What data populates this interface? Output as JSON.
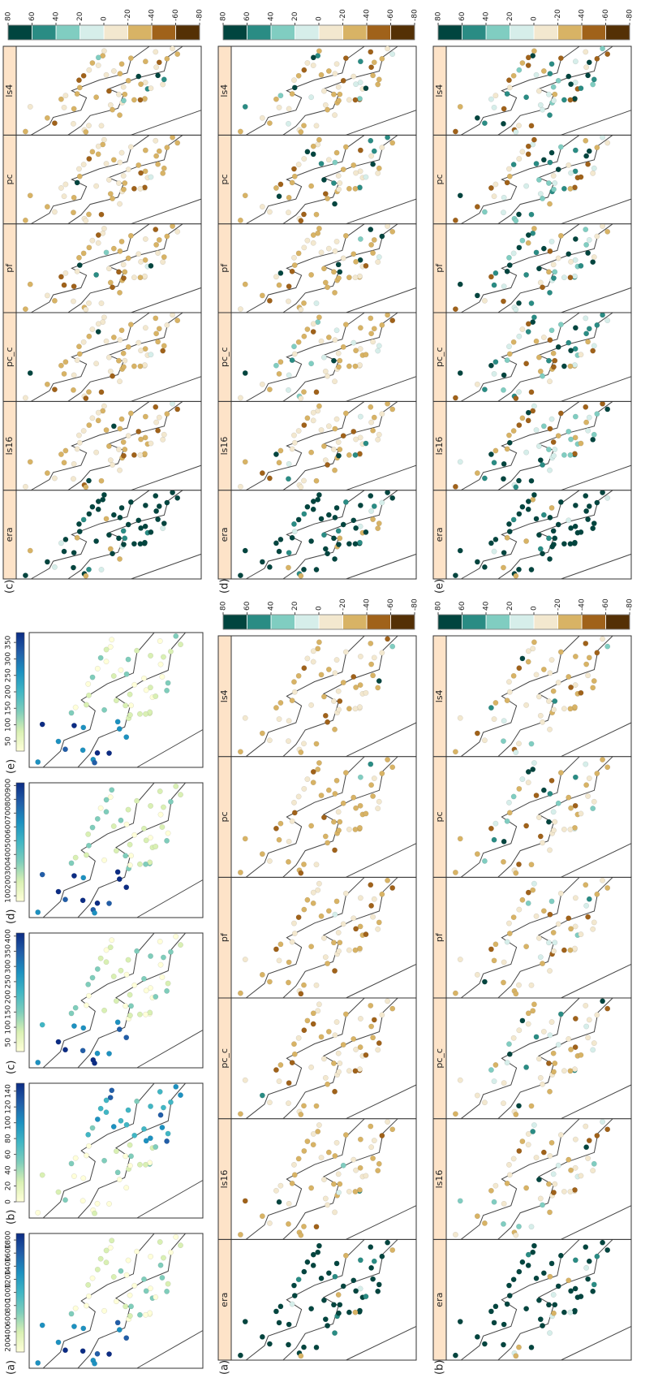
{
  "small_maps": [
    {
      "label": "(a)",
      "ticks": [
        1800,
        1600,
        1400,
        1200,
        1000,
        800,
        600,
        400,
        200
      ],
      "lim": [
        90,
        1900
      ]
    },
    {
      "label": "(b)",
      "ticks": [
        140,
        120,
        100,
        80,
        60,
        40,
        20,
        0
      ],
      "lim": [
        0,
        150
      ]
    },
    {
      "label": "(c)",
      "ticks": [
        400,
        350,
        300,
        250,
        200,
        150,
        100,
        50
      ],
      "lim": [
        20,
        410
      ]
    },
    {
      "label": "(d)",
      "ticks": [
        900,
        800,
        700,
        600,
        500,
        400,
        300,
        200,
        100
      ],
      "lim": [
        60,
        920
      ]
    },
    {
      "label": "(e)",
      "ticks": [
        350,
        300,
        250,
        200,
        150,
        100,
        50
      ],
      "lim": [
        20,
        380
      ]
    }
  ],
  "small_colormap": [
    "#ffffd9",
    "#d9f0b3",
    "#7fcdbb",
    "#41b6c4",
    "#1d91c0",
    "#225ea8",
    "#0c2c84"
  ],
  "rows": [
    {
      "label": "(a)"
    },
    {
      "label": "(b)"
    },
    {
      "label": "(c)"
    },
    {
      "label": "(d)"
    },
    {
      "label": "(e)"
    }
  ],
  "facets": [
    "era",
    "ls16",
    "pc_c",
    "pf",
    "pc",
    "ls4"
  ],
  "diverging": {
    "ticks": [
      80,
      60,
      40,
      20,
      0,
      -20,
      -40,
      -60,
      -80
    ],
    "lim": [
      -80,
      80
    ],
    "colors": [
      "#543005",
      "#a0621a",
      "#d8b365",
      "#f3e8cf",
      "#d6eeea",
      "#80cdc1",
      "#2a8c84",
      "#01453f"
    ]
  }
}
